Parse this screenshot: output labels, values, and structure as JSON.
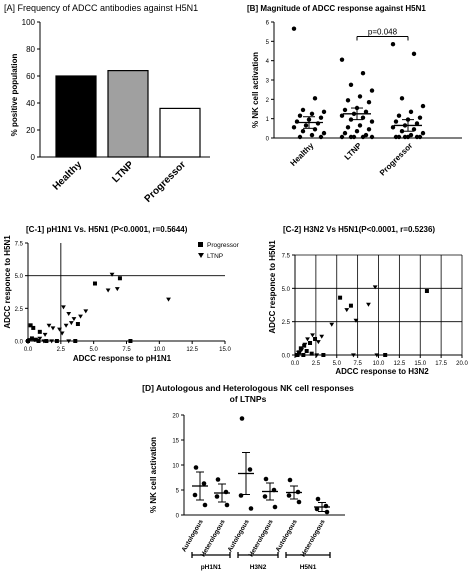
{
  "chart_data": [
    {
      "id": "A",
      "type": "bar",
      "title": "[A] Frequency of ADCC antibodies against H5N1",
      "ylabel": "% positive population",
      "ylim": [
        0,
        100
      ],
      "yticks": [
        "0",
        "20",
        "40",
        "60",
        "80",
        "100"
      ],
      "categories": [
        "Healthy",
        "LTNP",
        "Progressor"
      ],
      "values": [
        60,
        64,
        36
      ],
      "colors": [
        "#000000",
        "#a0a0a0",
        "#ffffff"
      ]
    },
    {
      "id": "B",
      "type": "scatter",
      "title": "[B] Magnitude of ADCC response against H5N1",
      "ylabel": "% NK cell activation",
      "ylim": [
        0,
        6
      ],
      "yticks": [
        "0",
        "1",
        "2",
        "3",
        "4",
        "5",
        "6"
      ],
      "categories": [
        "Healthy",
        "LTNP",
        "Progressor"
      ],
      "groups": [
        {
          "name": "Healthy",
          "mean": 0.8,
          "sem": 0.3,
          "points": [
            5.6,
            2.0,
            1.4,
            1.3,
            1.2,
            1.1,
            1.0,
            0.9,
            0.8,
            0.7,
            0.6,
            0.5,
            0.4,
            0.3,
            0.2,
            0.1,
            0.0,
            0.0
          ]
        },
        {
          "name": "LTNP",
          "mean": 1.25,
          "sem": 0.3,
          "points": [
            4.0,
            3.3,
            2.7,
            2.4,
            2.1,
            1.9,
            1.8,
            1.5,
            1.4,
            1.3,
            1.2,
            1.1,
            1.0,
            0.9,
            0.8,
            0.6,
            0.5,
            0.4,
            0.3,
            0.2,
            0.1,
            0.0,
            0.0,
            0.0,
            0.0,
            0.0
          ]
        },
        {
          "name": "Progressor",
          "mean": 0.65,
          "sem": 0.3,
          "points": [
            4.8,
            4.3,
            2.0,
            1.6,
            1.3,
            1.1,
            1.0,
            0.9,
            0.8,
            0.7,
            0.6,
            0.5,
            0.4,
            0.3,
            0.2,
            0.1,
            0.0,
            0.0,
            0.0,
            0.0,
            0.0,
            0.0
          ]
        }
      ],
      "annotation": {
        "text": "p=0.048",
        "from": "LTNP",
        "to": "Progressor",
        "y": 5.25
      }
    },
    {
      "id": "C1",
      "type": "scatter",
      "title": "[C-1] pH1N1 Vs. H5N1 (P<0.0001, r=0.5644)",
      "xlabel": "ADCC response to pH1N1",
      "ylabel": "ADCC responce to H5N1",
      "xlim": [
        0,
        15
      ],
      "ylim": [
        0,
        7.5
      ],
      "xticks": [
        "0.0",
        "2.5",
        "5.0",
        "7.5",
        "10.0",
        "12.5",
        "15.0"
      ],
      "yticks": [
        "0.0",
        "2.5",
        "5.0",
        "7.5"
      ],
      "legend": {
        "position": "top-right",
        "entries": [
          {
            "marker": "square",
            "label": "Progressor"
          },
          {
            "marker": "triangle",
            "label": "LTNP"
          }
        ]
      },
      "series": [
        {
          "name": "Progressor",
          "marker": "square",
          "points": [
            [
              5.1,
              4.4
            ],
            [
              7.0,
              4.8
            ],
            [
              3.8,
              1.3
            ],
            [
              0.2,
              1.2
            ],
            [
              0.4,
              1.0
            ],
            [
              0.9,
              0.7
            ],
            [
              0.3,
              0.2
            ],
            [
              0.6,
              0.1
            ],
            [
              1.4,
              0.0
            ],
            [
              2.2,
              0.0
            ],
            [
              3.6,
              0.0
            ],
            [
              7.8,
              0.0
            ],
            [
              0.0,
              0.0
            ],
            [
              0.8,
              0.0
            ]
          ]
        },
        {
          "name": "LTNP",
          "marker": "triangle",
          "points": [
            [
              6.4,
              5.1
            ],
            [
              6.8,
              4.0
            ],
            [
              6.1,
              3.9
            ],
            [
              10.7,
              3.2
            ],
            [
              4.4,
              2.3
            ],
            [
              4.0,
              1.9
            ],
            [
              2.7,
              2.6
            ],
            [
              3.1,
              2.1
            ],
            [
              3.5,
              1.7
            ],
            [
              3.3,
              1.4
            ],
            [
              2.9,
              1.2
            ],
            [
              2.4,
              0.9
            ],
            [
              2.6,
              0.6
            ],
            [
              1.6,
              1.2
            ],
            [
              1.9,
              1.0
            ],
            [
              1.3,
              0.5
            ],
            [
              0.9,
              0.2
            ],
            [
              0.5,
              0.1
            ],
            [
              0.1,
              0.1
            ],
            [
              1.2,
              0.0
            ],
            [
              1.8,
              0.0
            ],
            [
              3.1,
              0.0
            ]
          ]
        }
      ]
    },
    {
      "id": "C2",
      "type": "scatter",
      "title": "[C-2] H3N2 Vs H5N1(P<0.0001, r=0.5236)",
      "xlabel": "ADCC response to H3N2",
      "ylabel": "ADCC responce to H5N1",
      "xlim": [
        0,
        20
      ],
      "ylim": [
        0,
        7.5
      ],
      "xticks": [
        "0.0",
        "2.5",
        "5.0",
        "7.5",
        "10.0",
        "12.5",
        "15.0",
        "17.5",
        "20.0"
      ],
      "yticks": [
        "0.0",
        "2.5",
        "5.0",
        "7.5"
      ],
      "series": [
        {
          "name": "Progressor",
          "marker": "square",
          "points": [
            [
              15.8,
              4.8
            ],
            [
              5.4,
              4.3
            ],
            [
              6.7,
              3.7
            ],
            [
              2.4,
              1.2
            ],
            [
              1.8,
              0.9
            ],
            [
              1.1,
              0.7
            ],
            [
              0.7,
              0.5
            ],
            [
              1.4,
              0.3
            ],
            [
              0.5,
              0.2
            ],
            [
              2.0,
              0.1
            ],
            [
              3.4,
              0.0
            ],
            [
              10.8,
              0.0
            ],
            [
              0.3,
              0.0
            ],
            [
              1.0,
              0.0
            ]
          ]
        },
        {
          "name": "LTNP",
          "marker": "triangle",
          "points": [
            [
              9.6,
              5.1
            ],
            [
              8.8,
              3.8
            ],
            [
              6.2,
              3.4
            ],
            [
              7.3,
              2.6
            ],
            [
              4.4,
              2.3
            ],
            [
              3.2,
              1.4
            ],
            [
              2.8,
              1.0
            ],
            [
              2.1,
              1.5
            ],
            [
              1.5,
              1.2
            ],
            [
              1.2,
              0.8
            ],
            [
              0.8,
              0.4
            ],
            [
              0.4,
              0.2
            ],
            [
              7.0,
              0.0
            ],
            [
              9.8,
              0.0
            ],
            [
              0.2,
              0.0
            ],
            [
              2.6,
              0.0
            ]
          ]
        }
      ]
    },
    {
      "id": "D",
      "type": "scatter",
      "title_lines": [
        "[D] Autologous and Heterologous NK cell responses",
        "of LTNPs"
      ],
      "ylabel": "% NK cell activation",
      "ylim": [
        0,
        20
      ],
      "yticks": [
        "0",
        "5",
        "10",
        "15",
        "20"
      ],
      "categories": [
        "Autologous",
        "Heterologous",
        "Autologous",
        "Heterologous",
        "Autologous",
        "Heterologous"
      ],
      "groups": [
        {
          "name": "pH1N1",
          "span": [
            0,
            1
          ]
        },
        {
          "name": "H3N2",
          "span": [
            2,
            3
          ]
        },
        {
          "name": "H5N1",
          "span": [
            4,
            5
          ]
        }
      ],
      "columns": [
        {
          "mean": 5.8,
          "sem": 2.8,
          "points": [
            9.5,
            6.3,
            4.0,
            2.0
          ]
        },
        {
          "mean": 4.4,
          "sem": 1.8,
          "points": [
            7.1,
            4.6,
            3.7,
            2.0
          ]
        },
        {
          "mean": 8.3,
          "sem": 4.2,
          "points": [
            19.3,
            9.1,
            3.9,
            1.3
          ]
        },
        {
          "mean": 4.7,
          "sem": 1.7,
          "points": [
            7.2,
            5.0,
            3.7,
            1.6
          ]
        },
        {
          "mean": 4.5,
          "sem": 1.3,
          "points": [
            7.0,
            4.6,
            3.9,
            2.6
          ]
        },
        {
          "mean": 1.6,
          "sem": 0.9,
          "points": [
            3.2,
            1.8,
            1.2,
            0.6
          ]
        }
      ]
    }
  ]
}
